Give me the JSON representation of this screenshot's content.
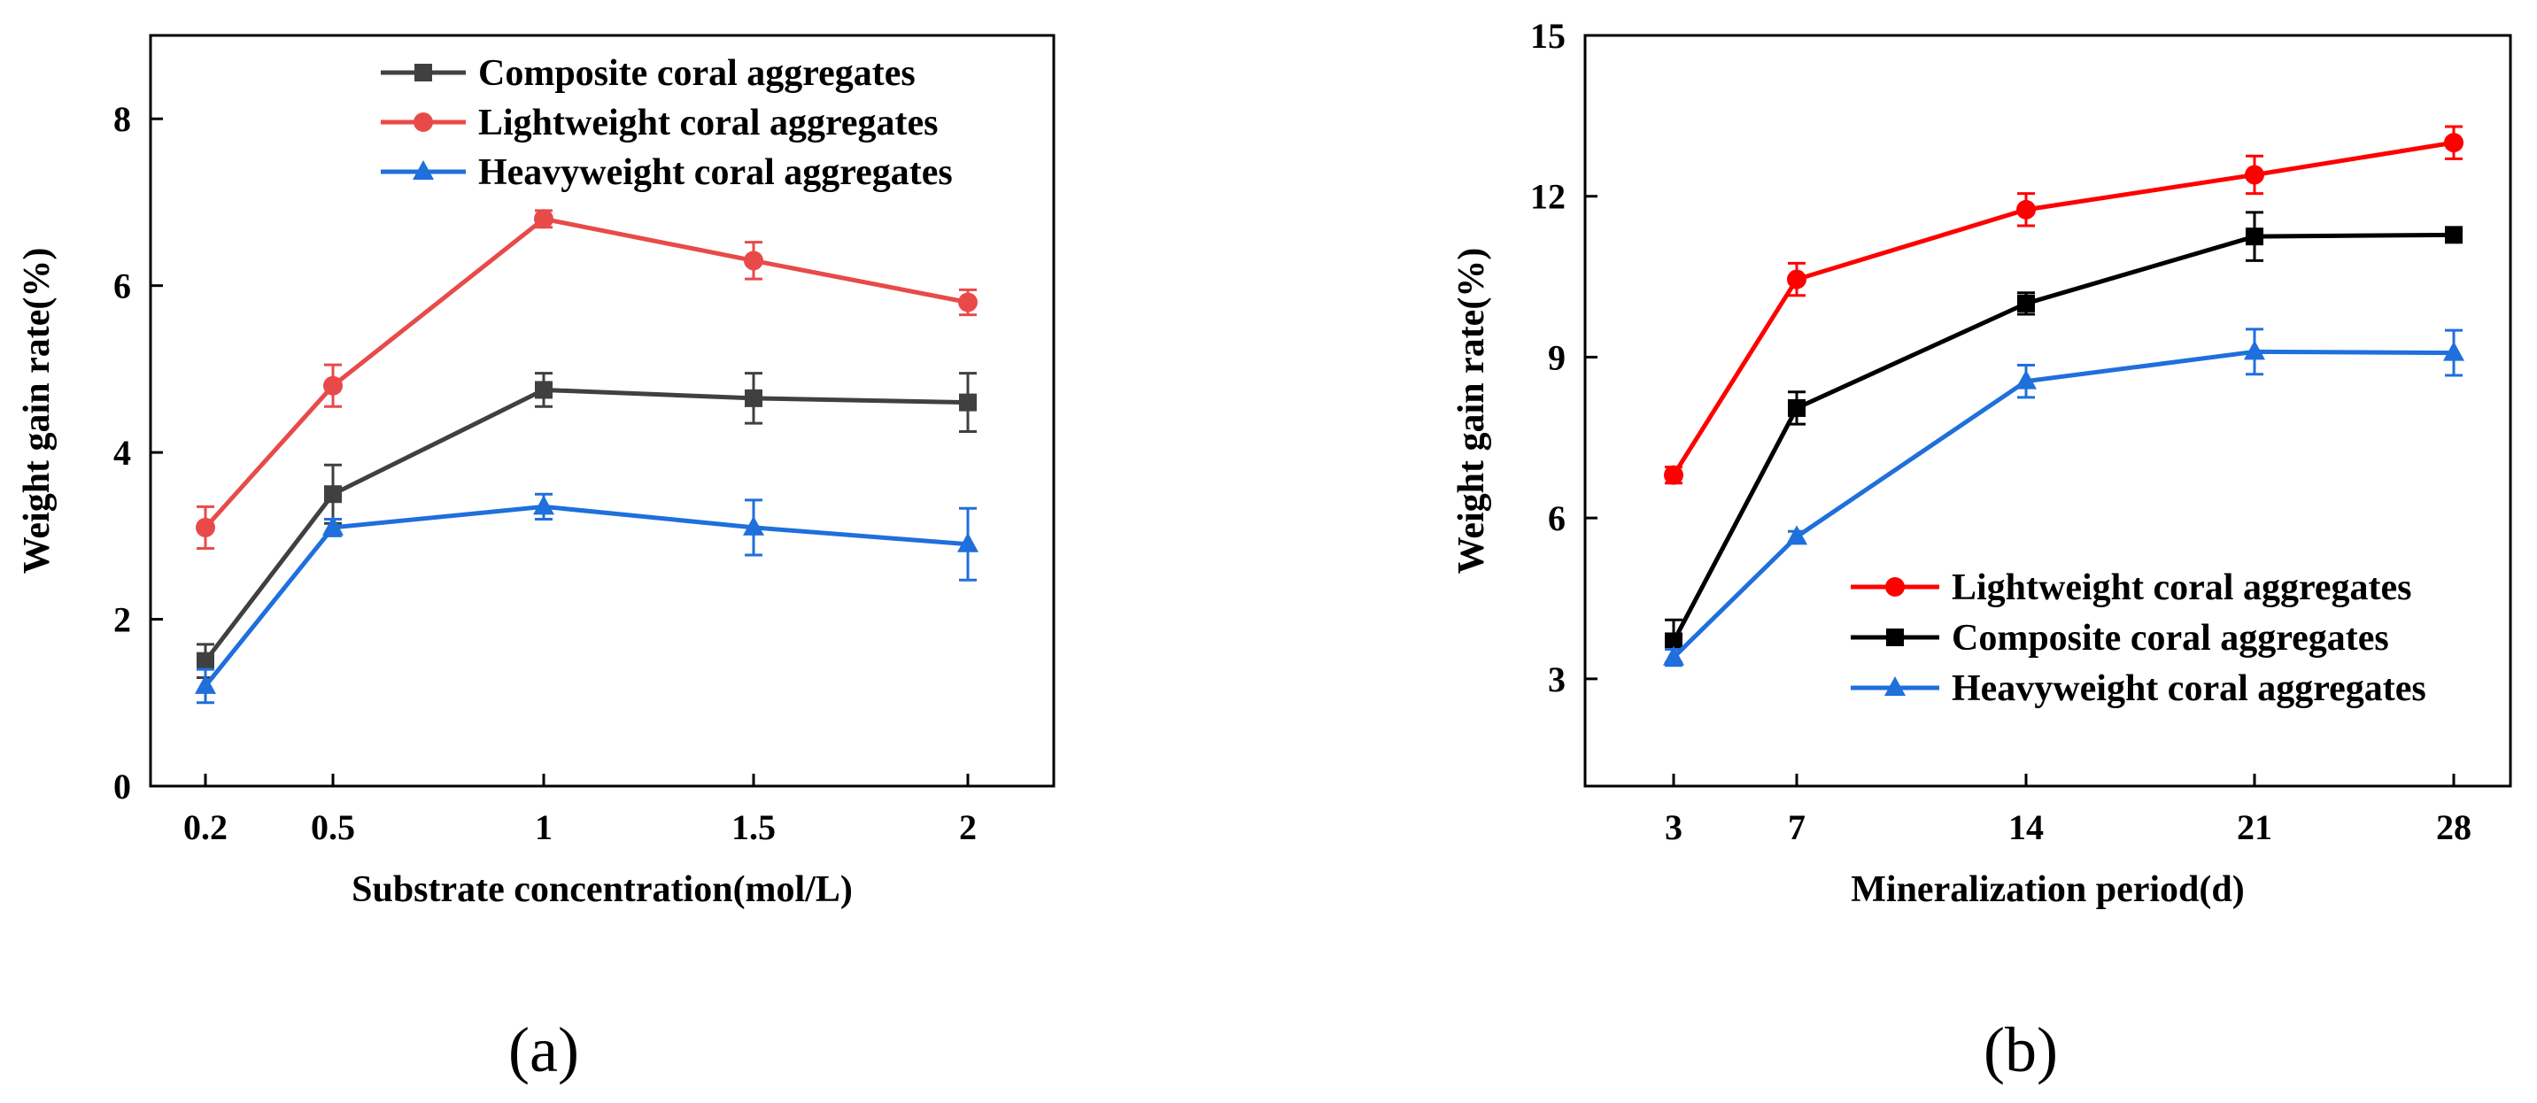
{
  "chart_data": [
    {
      "type": "line",
      "panel_label": "(a)",
      "xlabel": "Substrate concentration(mol/L)",
      "ylabel": "Weight gain rate(%)",
      "categories": [
        "0.2",
        "0.5",
        "1",
        "1.5",
        "2"
      ],
      "x": [
        0.2,
        0.5,
        1,
        1.5,
        2
      ],
      "ylim": [
        0,
        9
      ],
      "yticks": [
        "0",
        "2",
        "4",
        "6",
        "8"
      ],
      "legend_position": "top-right",
      "series": [
        {
          "name": "Composite coral aggregates",
          "color": "#404040",
          "marker": "square",
          "values": [
            1.5,
            3.5,
            4.75,
            4.65,
            4.6
          ],
          "errors": [
            0.2,
            0.35,
            0.2,
            0.3,
            0.35
          ]
        },
        {
          "name": "Lightweight coral aggregates",
          "color": "#e84a4a",
          "marker": "circle",
          "values": [
            3.1,
            4.8,
            6.8,
            6.3,
            5.8
          ],
          "errors": [
            0.25,
            0.25,
            0.1,
            0.22,
            0.15
          ]
        },
        {
          "name": "Heavyweight coral aggregates",
          "color": "#1f6fdc",
          "marker": "triangle",
          "values": [
            1.2,
            3.1,
            3.35,
            3.1,
            2.9
          ],
          "errors": [
            0.2,
            0.1,
            0.15,
            0.33,
            0.43
          ]
        }
      ]
    },
    {
      "type": "line",
      "panel_label": "(b)",
      "xlabel": "Mineralization period(d)",
      "ylabel": "Weight gain rate(%)",
      "categories": [
        "3",
        "7",
        "14",
        "21",
        "28"
      ],
      "x": [
        3,
        7,
        14,
        21,
        28
      ],
      "ylim": [
        1,
        15
      ],
      "yticks": [
        "3",
        "6",
        "9",
        "12",
        "15"
      ],
      "legend_position": "bottom-right",
      "series": [
        {
          "name": "Lightweight coral aggregates",
          "color": "#ff0000",
          "marker": "circle",
          "values": [
            6.8,
            10.45,
            11.75,
            12.4,
            13.0
          ],
          "errors": [
            0.15,
            0.3,
            0.3,
            0.35,
            0.3
          ]
        },
        {
          "name": "Composite coral aggregates",
          "color": "#000000",
          "marker": "square",
          "values": [
            3.7,
            8.05,
            10.0,
            11.25,
            11.28
          ],
          "errors": [
            0.4,
            0.3,
            0.2,
            0.45,
            0.1
          ]
        },
        {
          "name": "Heavyweight coral aggregates",
          "color": "#1f6fdc",
          "marker": "triangle",
          "values": [
            3.4,
            5.65,
            8.55,
            9.1,
            9.08
          ],
          "errors": [
            0.15,
            0.1,
            0.3,
            0.42,
            0.42
          ]
        }
      ]
    }
  ]
}
